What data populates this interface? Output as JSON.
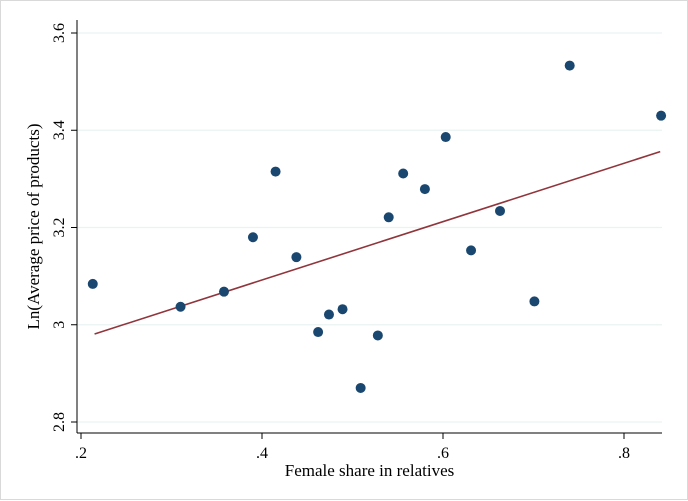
{
  "chart_data": {
    "type": "scatter",
    "title": "",
    "xlabel": "Female share in relatives",
    "ylabel": "Ln(Average price of products)",
    "xlim": [
      0.2,
      0.84
    ],
    "ylim": [
      2.8,
      3.6
    ],
    "x_ticks": [
      0.2,
      0.4,
      0.6,
      0.8
    ],
    "x_tick_labels": [
      ".2",
      ".4",
      ".6",
      ".8"
    ],
    "y_ticks": [
      2.8,
      3.0,
      3.2,
      3.4,
      3.6
    ],
    "y_tick_labels": [
      "2.8",
      "3",
      "3.2",
      "3.4",
      "3.6"
    ],
    "grid": "horizontal",
    "legend": "none",
    "points": [
      {
        "x": 0.213,
        "y": 3.084
      },
      {
        "x": 0.31,
        "y": 3.037
      },
      {
        "x": 0.358,
        "y": 3.068
      },
      {
        "x": 0.39,
        "y": 3.18
      },
      {
        "x": 0.415,
        "y": 3.315
      },
      {
        "x": 0.438,
        "y": 3.139
      },
      {
        "x": 0.462,
        "y": 2.985
      },
      {
        "x": 0.474,
        "y": 3.021
      },
      {
        "x": 0.489,
        "y": 3.032
      },
      {
        "x": 0.509,
        "y": 2.87
      },
      {
        "x": 0.528,
        "y": 2.978
      },
      {
        "x": 0.54,
        "y": 3.221
      },
      {
        "x": 0.556,
        "y": 3.311
      },
      {
        "x": 0.58,
        "y": 3.279
      },
      {
        "x": 0.603,
        "y": 3.386
      },
      {
        "x": 0.631,
        "y": 3.153
      },
      {
        "x": 0.663,
        "y": 3.234
      },
      {
        "x": 0.701,
        "y": 3.048
      },
      {
        "x": 0.74,
        "y": 3.533
      },
      {
        "x": 0.841,
        "y": 3.43
      }
    ],
    "fit_line": {
      "x": [
        0.215,
        0.84
      ],
      "y": [
        2.981,
        3.356
      ]
    },
    "colors": {
      "marker": "#1a476f",
      "fit_line": "#90353b",
      "grid": "#eaf2f3",
      "axis": "#000000"
    }
  }
}
